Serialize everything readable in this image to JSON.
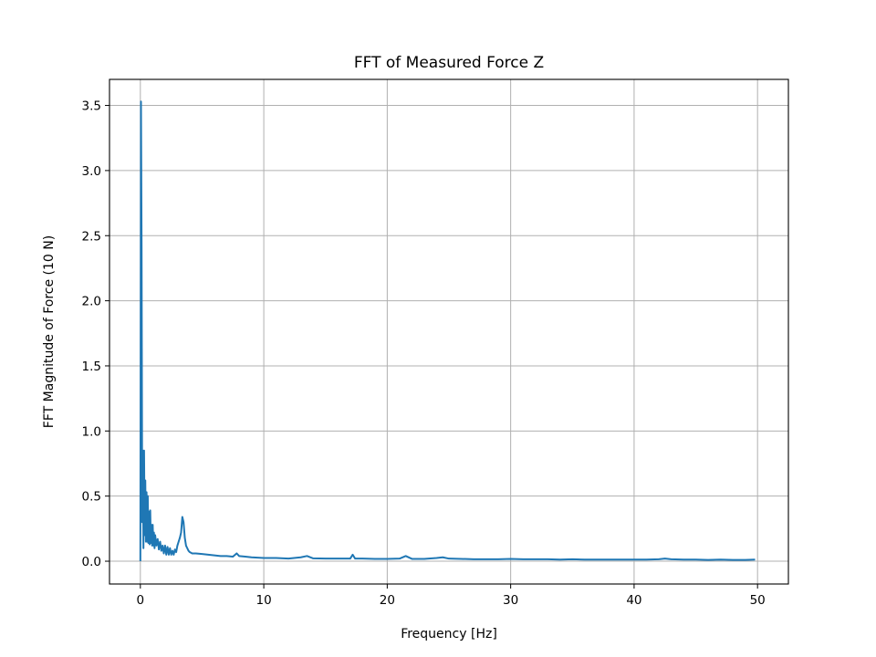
{
  "chart_data": {
    "type": "line",
    "title": "FFT of Measured Force Z",
    "xlabel": "Frequency [Hz]",
    "ylabel": "FFT Magnitude of Force (10 N)",
    "xlim": [
      -2.5,
      52.5
    ],
    "ylim": [
      -0.175,
      3.7
    ],
    "xticks": [
      0,
      10,
      20,
      30,
      40,
      50
    ],
    "xtick_labels": [
      "0",
      "10",
      "20",
      "30",
      "40",
      "50"
    ],
    "yticks": [
      0.0,
      0.5,
      1.0,
      1.5,
      2.0,
      2.5,
      3.0,
      3.5
    ],
    "ytick_labels": [
      "0.0",
      "0.5",
      "1.0",
      "1.5",
      "2.0",
      "2.5",
      "3.0",
      "3.5"
    ],
    "grid": true,
    "legend": null,
    "line_color": "#1f77b4",
    "series": [
      {
        "x": [
          0.0,
          0.05,
          0.1,
          0.15,
          0.2,
          0.25,
          0.3,
          0.35,
          0.4,
          0.45,
          0.5,
          0.55,
          0.6,
          0.65,
          0.7,
          0.75,
          0.8,
          0.85,
          0.9,
          0.95,
          1.0,
          1.05,
          1.1,
          1.15,
          1.2,
          1.3,
          1.4,
          1.5,
          1.6,
          1.7,
          1.8,
          1.9,
          2.0,
          2.1,
          2.2,
          2.3,
          2.4,
          2.5,
          2.6,
          2.7,
          2.8,
          2.9,
          3.0,
          3.1,
          3.2,
          3.3,
          3.4,
          3.5,
          3.6,
          3.7,
          3.8,
          3.9,
          4.0,
          4.2,
          4.5,
          5.0,
          5.5,
          6.0,
          6.5,
          7.0,
          7.5,
          7.8,
          8.0,
          8.5,
          9.0,
          10.0,
          11.0,
          12.0,
          13.0,
          13.5,
          14.0,
          15.0,
          16.0,
          17.0,
          17.2,
          17.4,
          18.0,
          19.0,
          20.0,
          21.0,
          21.5,
          22.0,
          23.0,
          24.0,
          24.5,
          25.0,
          26.0,
          27.0,
          28.0,
          29.0,
          30.0,
          31.0,
          32.0,
          33.0,
          34.0,
          35.0,
          36.0,
          37.0,
          38.0,
          39.0,
          40.0,
          41.0,
          42.0,
          42.5,
          43.0,
          44.0,
          45.0,
          46.0,
          47.0,
          48.0,
          49.0,
          49.8
        ],
        "y": [
          0.0,
          3.53,
          2.4,
          0.3,
          0.85,
          0.1,
          0.85,
          0.2,
          0.62,
          0.15,
          0.53,
          0.15,
          0.5,
          0.14,
          0.38,
          0.13,
          0.39,
          0.14,
          0.28,
          0.12,
          0.28,
          0.12,
          0.22,
          0.1,
          0.2,
          0.12,
          0.17,
          0.09,
          0.15,
          0.08,
          0.12,
          0.06,
          0.12,
          0.05,
          0.11,
          0.05,
          0.1,
          0.05,
          0.08,
          0.05,
          0.09,
          0.07,
          0.12,
          0.15,
          0.18,
          0.22,
          0.34,
          0.3,
          0.18,
          0.12,
          0.1,
          0.08,
          0.07,
          0.06,
          0.06,
          0.055,
          0.05,
          0.045,
          0.04,
          0.04,
          0.035,
          0.06,
          0.04,
          0.035,
          0.03,
          0.025,
          0.025,
          0.02,
          0.03,
          0.04,
          0.022,
          0.02,
          0.02,
          0.02,
          0.05,
          0.02,
          0.02,
          0.018,
          0.018,
          0.02,
          0.04,
          0.018,
          0.018,
          0.025,
          0.03,
          0.02,
          0.018,
          0.015,
          0.015,
          0.015,
          0.018,
          0.015,
          0.015,
          0.015,
          0.012,
          0.015,
          0.012,
          0.012,
          0.012,
          0.012,
          0.012,
          0.012,
          0.015,
          0.02,
          0.015,
          0.012,
          0.012,
          0.01,
          0.012,
          0.01,
          0.01,
          0.012
        ]
      }
    ]
  }
}
